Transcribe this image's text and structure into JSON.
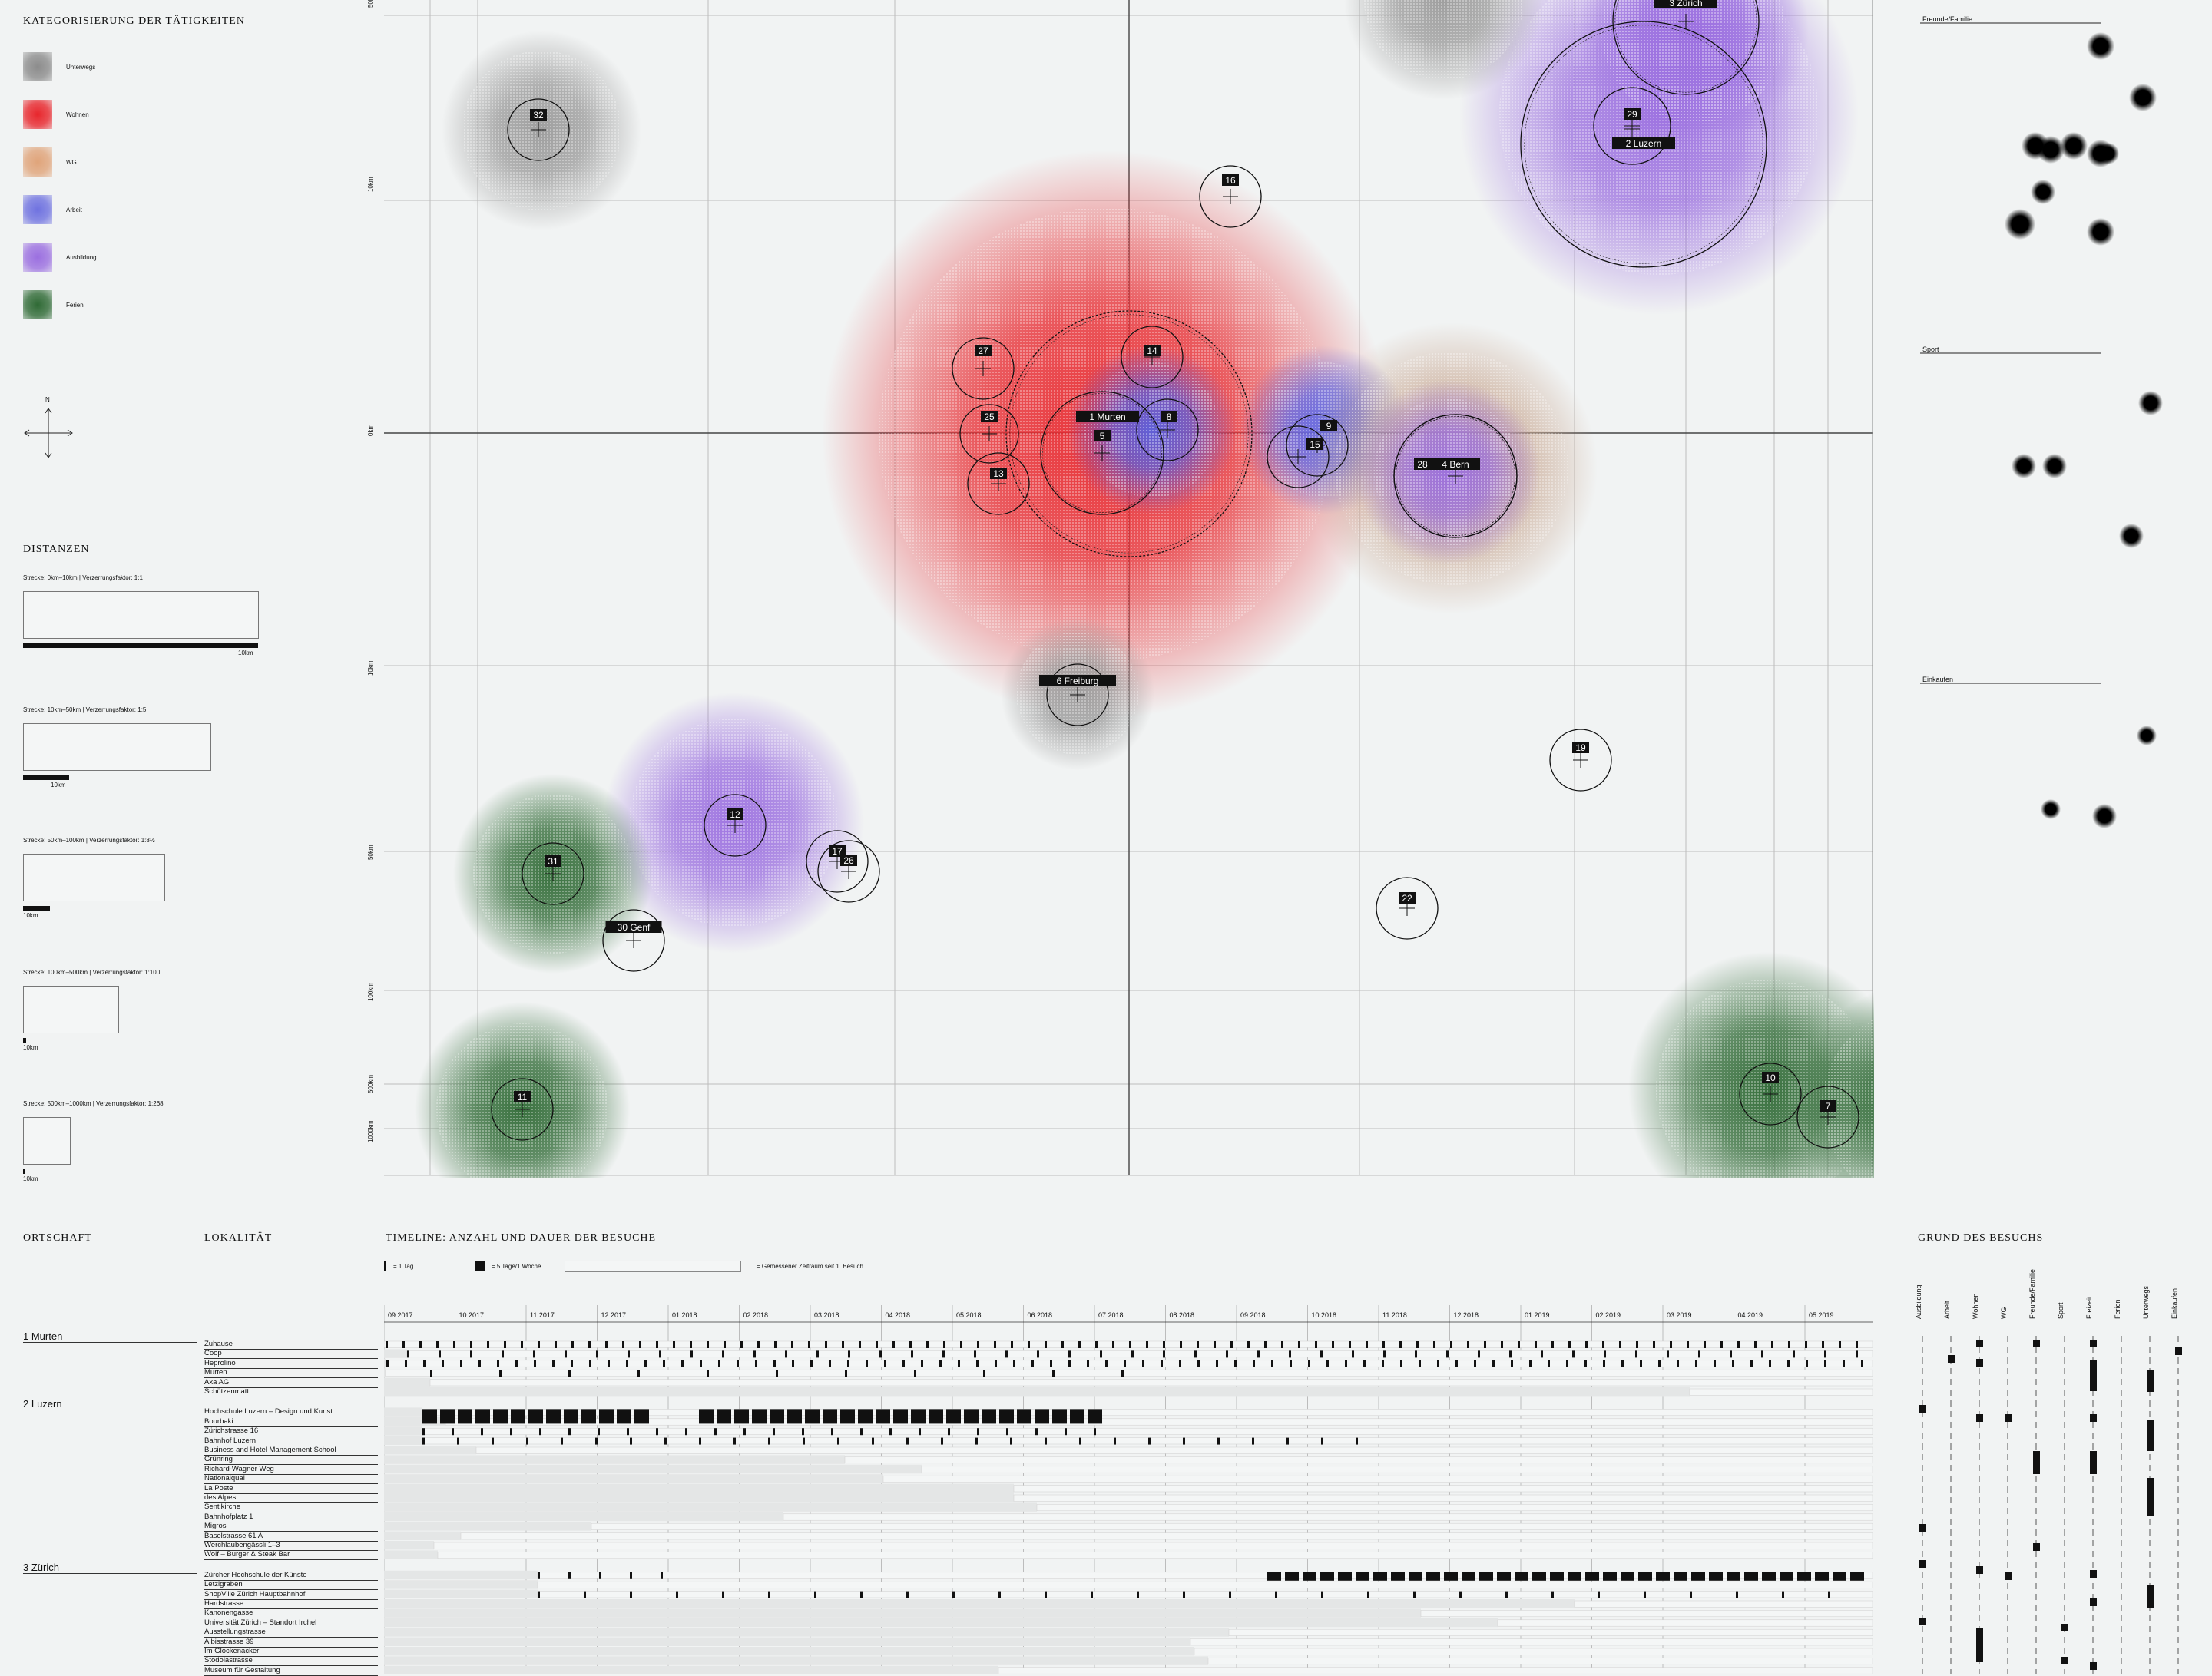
{
  "legend": {
    "title": "Kategorisierung der Tätigkeiten",
    "items": [
      {
        "label": "Unterwegs",
        "color": "#8c8c8c"
      },
      {
        "label": "Wohnen",
        "color": "#e8262c"
      },
      {
        "label": "WG",
        "color": "#e0a47a"
      },
      {
        "label": "Arbeit",
        "color": "#6f72e0"
      },
      {
        "label": "Ausbildung",
        "color": "#9b6fe0"
      },
      {
        "label": "Ferien",
        "color": "#2f6a35"
      }
    ],
    "north": "N"
  },
  "distances": {
    "title": "Distanzen",
    "items": [
      {
        "label": "Strecke: 0km–10km | Verzerrungsfaktor: 1:1",
        "scale": "10km"
      },
      {
        "label": "Strecke: 10km–50km | Verzerrungsfaktor: 1:5",
        "scale": "10km"
      },
      {
        "label": "Strecke: 50km–100km | Verzerrungsfaktor: 1:8½",
        "scale": "10km"
      },
      {
        "label": "Strecke: 100km–500km | Verzerrungsfaktor: 1:100",
        "scale": "10km"
      },
      {
        "label": "Strecke: 500km–1000km | Verzerrungsfaktor: 1:268",
        "scale": "10km"
      }
    ]
  },
  "map_axis": [
    "50km",
    "10km",
    "0km",
    "10km",
    "50km",
    "100km",
    "500km",
    "1000km"
  ],
  "places": [
    {
      "id": "32",
      "label": "32",
      "cat": "Unterwegs"
    },
    {
      "id": "16",
      "label": "16",
      "cat": ""
    },
    {
      "id": "29",
      "label": "29",
      "cat": "Ausbildung"
    },
    {
      "id": "2",
      "label": "2 Luzern",
      "cat": "Ausbildung"
    },
    {
      "id": "3",
      "label": "3 Zürich",
      "cat": "Ausbildung"
    },
    {
      "id": "27",
      "label": "27",
      "cat": "Wohnen"
    },
    {
      "id": "14",
      "label": "14",
      "cat": "Wohnen"
    },
    {
      "id": "25",
      "label": "25",
      "cat": "Wohnen"
    },
    {
      "id": "1",
      "label": "1 Murten",
      "cat": "Wohnen"
    },
    {
      "id": "8",
      "label": "8",
      "cat": "Arbeit"
    },
    {
      "id": "5",
      "label": "5",
      "cat": "Wohnen"
    },
    {
      "id": "13",
      "label": "13",
      "cat": "Wohnen"
    },
    {
      "id": "9",
      "label": "9",
      "cat": "Arbeit"
    },
    {
      "id": "15",
      "label": "15",
      "cat": "Arbeit"
    },
    {
      "id": "28",
      "label": "28",
      "cat": "Ausbildung"
    },
    {
      "id": "4",
      "label": "4 Bern",
      "cat": "Ausbildung"
    },
    {
      "id": "6",
      "label": "6 Freiburg",
      "cat": "Unterwegs"
    },
    {
      "id": "19",
      "label": "19",
      "cat": ""
    },
    {
      "id": "12",
      "label": "12",
      "cat": "Ausbildung"
    },
    {
      "id": "31",
      "label": "31",
      "cat": "Ferien"
    },
    {
      "id": "17",
      "label": "17",
      "cat": ""
    },
    {
      "id": "26",
      "label": "26",
      "cat": ""
    },
    {
      "id": "30",
      "label": "30 Genf",
      "cat": ""
    },
    {
      "id": "22",
      "label": "22",
      "cat": ""
    },
    {
      "id": "11",
      "label": "11",
      "cat": "Ferien"
    },
    {
      "id": "10",
      "label": "10",
      "cat": "Ferien"
    },
    {
      "id": "7",
      "label": "7",
      "cat": "Ferien"
    }
  ],
  "side_panels": [
    {
      "title": "Freunde/Familie",
      "dots": 10
    },
    {
      "title": "Sport",
      "dots": 4
    },
    {
      "title": "Einkaufen",
      "dots": 3
    }
  ],
  "bottom": {
    "col_ortschaft": "Ortschaft",
    "col_lokalitaet": "Lokalität",
    "timeline_title": "Timeline: Anzahl und Dauer der Besuche",
    "key_day": "= 1 Tag",
    "key_week": "= 5 Tage/1 Woche",
    "key_range": "= Gemessener Zeitraum seit 1. Besuch",
    "reason_title": "Grund des Besuchs",
    "months": [
      "09.2017",
      "10.2017",
      "11.2017",
      "12.2017",
      "01.2018",
      "02.2018",
      "03.2018",
      "04.2018",
      "05.2018",
      "06.2018",
      "07.2018",
      "08.2018",
      "09.2018",
      "10.2018",
      "11.2018",
      "12.2018",
      "01.2019",
      "02.2019",
      "03.2019",
      "04.2019",
      "05.2019"
    ],
    "reasons": [
      "Ausbildung",
      "Arbeit",
      "Wohnen",
      "WG",
      "Freunde/Familie",
      "Sport",
      "Freizeit",
      "Ferien",
      "Unterwegs",
      "Einkaufen"
    ],
    "cities": [
      {
        "name": "1 Murten",
        "locations": [
          "Zuhause",
          "Coop",
          "Heprolino",
          "Murten",
          "Axa AG",
          "Schützenmatt"
        ]
      },
      {
        "name": "2 Luzern",
        "locations": [
          "Hochschule Luzern – Design und Kunst",
          "Bourbaki",
          "Zürichstrasse 16",
          "Bahnhof Luzern",
          "Business and Hotel Management School",
          "Grünring",
          "Richard-Wagner Weg",
          "Nationalquai",
          "La Poste",
          "des Alpes",
          "Sentikirche",
          "Bahnhofplatz 1",
          "Migros",
          "Baselstrasse 61 A",
          "Werchlaubengässli 1–3",
          "Wolf – Burger & Steak Bar"
        ]
      },
      {
        "name": "3 Zürich",
        "locations": [
          "Zürcher Hochschule der Künste",
          "Letzigraben",
          "ShopVille Zürich Hauptbahnhof",
          "Hardstrasse",
          "Kanonengasse",
          "Universität Zürich – Standort Irchel",
          "Ausstellungstrasse",
          "Albisstrasse 39",
          "Im Glockenacker",
          "Stodolastrasse",
          "Museum für Gestaltung"
        ]
      }
    ]
  }
}
